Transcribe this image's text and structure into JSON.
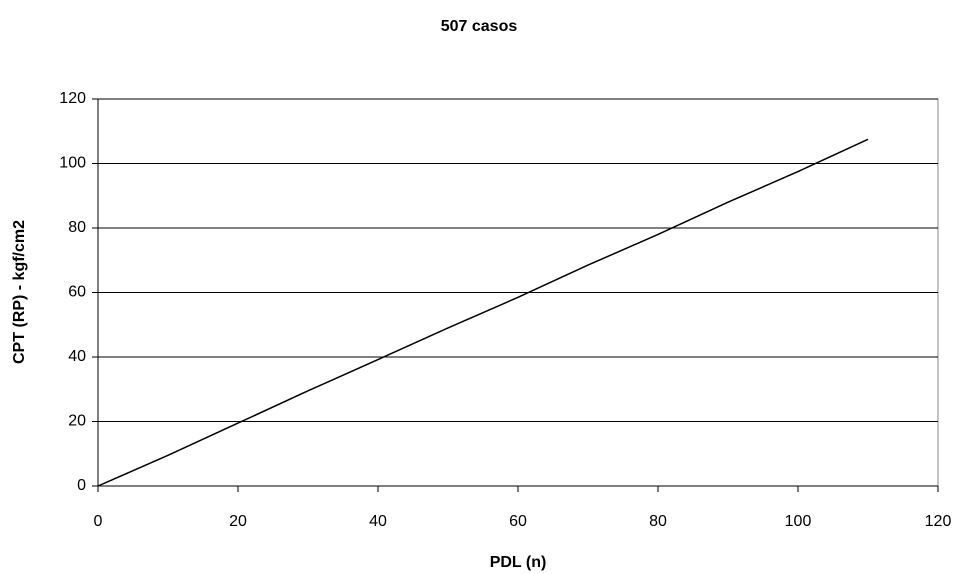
{
  "chart_data": {
    "type": "line",
    "title": "507 casos",
    "x_label": "PDL (n)",
    "y_label": "CPT (RP) - kgf/cm2",
    "x": [
      0,
      10,
      20,
      30,
      40,
      50,
      60,
      70,
      80,
      90,
      100,
      110
    ],
    "series": [
      {
        "name": null,
        "color": "#000000",
        "values": [
          0,
          9.5,
          19.5,
          29.5,
          39.2,
          49,
          58.5,
          68.5,
          78,
          88,
          97.5,
          107.5
        ]
      }
    ],
    "xlim": [
      0,
      120
    ],
    "xticks": [
      0,
      20,
      40,
      60,
      80,
      100,
      120
    ],
    "ylim": [
      0,
      120
    ],
    "yticks": [
      0,
      20,
      40,
      60,
      80,
      100,
      120
    ],
    "grid": true
  }
}
